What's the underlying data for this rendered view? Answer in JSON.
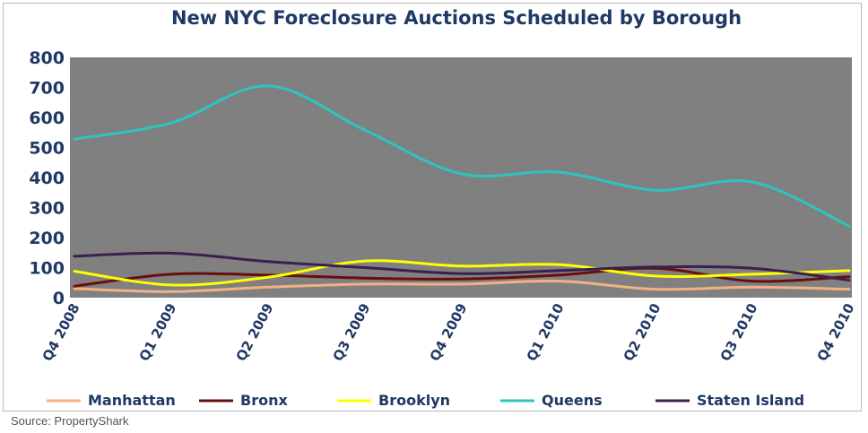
{
  "chart_data": {
    "type": "line",
    "title": "New NYC Foreclosure Auctions Scheduled by Borough",
    "xlabel": "",
    "ylabel": "",
    "categories": [
      "Q4 2008",
      "Q1 2009",
      "Q2 2009",
      "Q3 2009",
      "Q4 2009",
      "Q1 2010",
      "Q2 2010",
      "Q3 2010",
      "Q4 2010"
    ],
    "ylim": [
      0,
      800
    ],
    "yticks": [
      0,
      100,
      200,
      300,
      400,
      500,
      600,
      700,
      800
    ],
    "grid": false,
    "legend_position": "bottom",
    "plot_background": "#808080",
    "series": [
      {
        "name": "Manhattan",
        "color": "#f4b183",
        "values": [
          30,
          20,
          35,
          45,
          45,
          55,
          28,
          35,
          28
        ]
      },
      {
        "name": "Bronx",
        "color": "#6b0d0d",
        "values": [
          38,
          78,
          75,
          65,
          62,
          75,
          98,
          55,
          70
        ]
      },
      {
        "name": "Brooklyn",
        "color": "#ffff00",
        "values": [
          88,
          42,
          68,
          122,
          105,
          110,
          72,
          78,
          90
        ]
      },
      {
        "name": "Queens",
        "color": "#2cc5c0",
        "values": [
          528,
          582,
          705,
          558,
          412,
          418,
          358,
          385,
          238
        ]
      },
      {
        "name": "Staten Island",
        "color": "#3b1f4f",
        "values": [
          138,
          148,
          120,
          100,
          80,
          90,
          102,
          98,
          58
        ]
      }
    ]
  },
  "source": "Source: PropertyShark"
}
